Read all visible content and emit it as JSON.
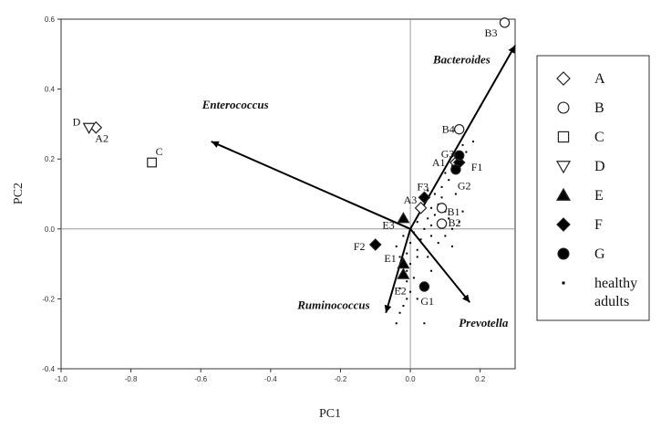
{
  "chart_data": {
    "type": "scatter",
    "title": "",
    "xlabel": "PC1",
    "ylabel": "PC2",
    "xlim": [
      -1.0,
      0.3
    ],
    "ylim": [
      -0.4,
      0.6
    ],
    "x_ticks": [
      "-1.0",
      "-0.8",
      "-0.6",
      "-0.4",
      "-0.2",
      "0.0",
      "0.2"
    ],
    "y_ticks": [
      "-0.4",
      "-0.2",
      "0.0",
      "0.2",
      "0.4",
      "0.6"
    ],
    "grid": false,
    "legend": {
      "position": "right",
      "entries": [
        {
          "label": "A",
          "marker": "diamond-open"
        },
        {
          "label": "B",
          "marker": "circle-open"
        },
        {
          "label": "C",
          "marker": "square-open"
        },
        {
          "label": "D",
          "marker": "triangle-down-open"
        },
        {
          "label": "E",
          "marker": "triangle-up-filled"
        },
        {
          "label": "F",
          "marker": "diamond-filled"
        },
        {
          "label": "G",
          "marker": "circle-filled"
        },
        {
          "label": "healthy adults",
          "marker": "small-square",
          "lines": [
            "healthy",
            "adults"
          ]
        }
      ]
    },
    "samples": [
      {
        "label": "A1",
        "group": "A",
        "x": 0.13,
        "y": 0.19
      },
      {
        "label": "A2",
        "group": "A",
        "x": -0.9,
        "y": 0.29
      },
      {
        "label": "A3",
        "group": "A",
        "x": 0.03,
        "y": 0.06
      },
      {
        "label": "B1",
        "group": "B",
        "x": 0.09,
        "y": 0.06
      },
      {
        "label": "B2",
        "group": "B",
        "x": 0.09,
        "y": 0.015
      },
      {
        "label": "B3",
        "group": "B",
        "x": 0.27,
        "y": 0.59
      },
      {
        "label": "B4",
        "group": "B",
        "x": 0.14,
        "y": 0.285
      },
      {
        "label": "C",
        "group": "C",
        "x": -0.74,
        "y": 0.19
      },
      {
        "label": "D",
        "group": "D",
        "x": -0.92,
        "y": 0.29
      },
      {
        "label": "E1",
        "group": "E",
        "x": -0.02,
        "y": -0.1
      },
      {
        "label": "E2",
        "group": "E",
        "x": -0.02,
        "y": -0.13
      },
      {
        "label": "E3",
        "group": "E",
        "x": -0.02,
        "y": 0.03
      },
      {
        "label": "F1",
        "group": "F",
        "x": 0.14,
        "y": 0.19
      },
      {
        "label": "F2",
        "group": "F",
        "x": -0.1,
        "y": -0.045
      },
      {
        "label": "F3",
        "group": "F",
        "x": 0.04,
        "y": 0.09
      },
      {
        "label": "G1",
        "group": "G",
        "x": 0.04,
        "y": -0.165
      },
      {
        "label": "G2",
        "group": "G",
        "x": 0.13,
        "y": 0.17
      },
      {
        "label": "G3",
        "group": "G",
        "x": 0.14,
        "y": 0.21
      }
    ],
    "healthy_adults": [
      [
        -0.04,
        -0.27
      ],
      [
        -0.03,
        -0.24
      ],
      [
        -0.02,
        -0.22
      ],
      [
        -0.01,
        -0.2
      ],
      [
        0.0,
        -0.18
      ],
      [
        -0.03,
        -0.17
      ],
      [
        -0.01,
        -0.15
      ],
      [
        0.01,
        -0.14
      ],
      [
        -0.02,
        -0.12
      ],
      [
        0.0,
        -0.1
      ],
      [
        -0.03,
        -0.08
      ],
      [
        -0.01,
        -0.07
      ],
      [
        0.02,
        -0.06
      ],
      [
        -0.04,
        -0.05
      ],
      [
        0.0,
        -0.04
      ],
      [
        0.03,
        -0.03
      ],
      [
        -0.02,
        -0.02
      ],
      [
        0.01,
        -0.01
      ],
      [
        0.04,
        0.0
      ],
      [
        0.06,
        0.01
      ],
      [
        0.02,
        0.02
      ],
      [
        0.05,
        0.03
      ],
      [
        0.07,
        0.04
      ],
      [
        0.03,
        0.05
      ],
      [
        0.06,
        0.06
      ],
      [
        0.08,
        0.07
      ],
      [
        0.1,
        0.05
      ],
      [
        0.11,
        0.03
      ],
      [
        0.12,
        0.0
      ],
      [
        0.1,
        -0.02
      ],
      [
        0.08,
        -0.04
      ],
      [
        0.07,
        0.1
      ],
      [
        0.09,
        0.12
      ],
      [
        0.11,
        0.14
      ],
      [
        0.1,
        0.16
      ],
      [
        0.12,
        0.18
      ],
      [
        0.14,
        0.2
      ],
      [
        0.16,
        0.22
      ],
      [
        0.18,
        0.25
      ],
      [
        0.2,
        0.35
      ],
      [
        0.05,
        -0.08
      ],
      [
        0.06,
        -0.12
      ],
      [
        0.03,
        -0.16
      ],
      [
        0.02,
        -0.2
      ],
      [
        0.04,
        -0.27
      ],
      [
        0.15,
        0.24
      ],
      [
        0.13,
        0.1
      ],
      [
        0.09,
        0.09
      ],
      [
        0.05,
        0.11
      ],
      [
        0.15,
        0.05
      ],
      [
        0.14,
        0.02
      ],
      [
        0.12,
        -0.05
      ],
      [
        0.06,
        -0.02
      ],
      [
        0.02,
        -0.08
      ],
      [
        -0.01,
        -0.12
      ]
    ],
    "vectors": [
      {
        "label": "Bacteroides",
        "x": 0.3,
        "y": 0.525
      },
      {
        "label": "Enterococcus",
        "x": -0.57,
        "y": 0.25
      },
      {
        "label": "Ruminococcus",
        "x": -0.07,
        "y": -0.24
      },
      {
        "label": "Prevotella",
        "x": 0.17,
        "y": -0.21
      }
    ]
  }
}
